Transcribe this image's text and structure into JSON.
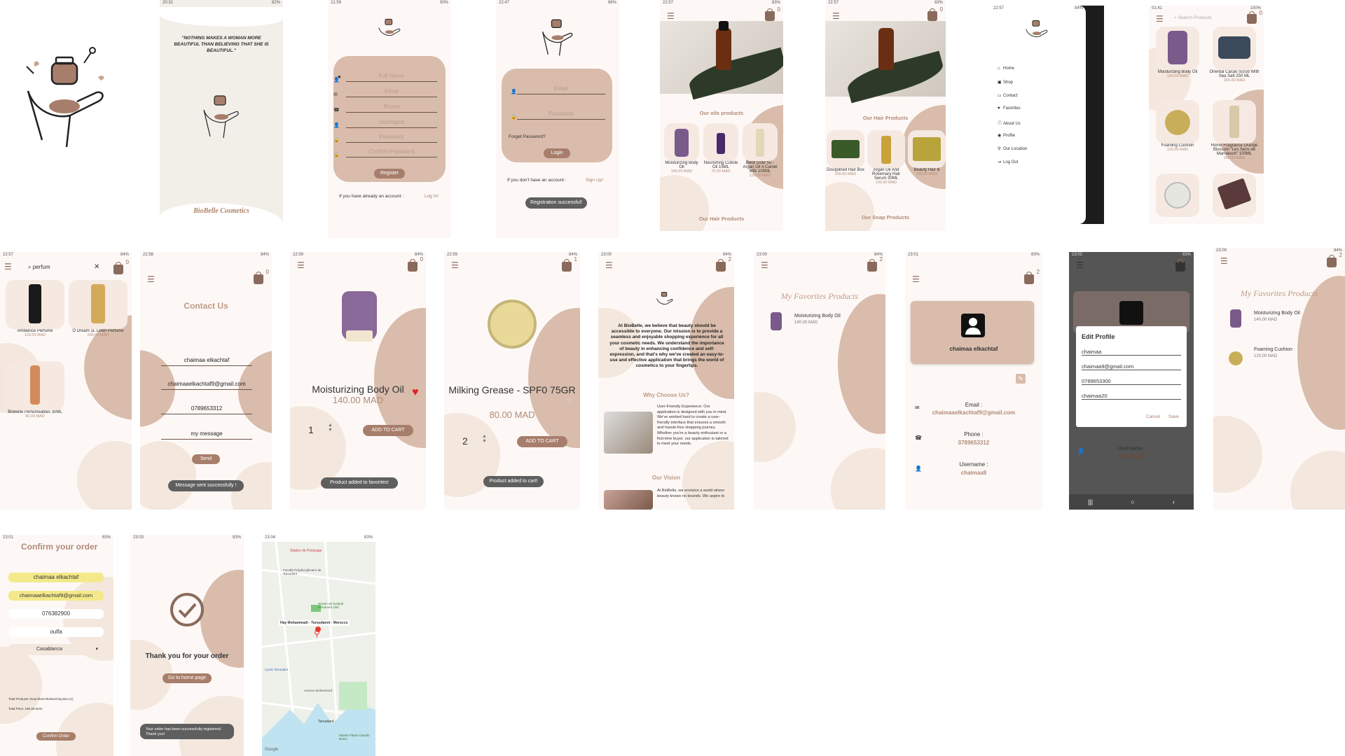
{
  "brand": {
    "name": "BioBelle Cosmetics",
    "quote": "\"NOTHING MAKES A WOMAN MORE BEAUTIFUL THAN BELIEVING THAT SHE IS BEAUTIFUL.\""
  },
  "colors": {
    "accent": "#a77e6b",
    "blob_dark": "#d9bcab",
    "blob_light": "#f4e7dd",
    "price": "#b18a78"
  },
  "status_times": [
    "20:31",
    "21:59",
    "22:47",
    "22:57",
    "22:57",
    "22:57",
    "01:41",
    "22:57",
    "22:58",
    "22:59",
    "22:59",
    "23:00",
    "23:00",
    "23:01",
    "23:02",
    "23:00",
    "23:01",
    "23:03",
    "23:04"
  ],
  "register": {
    "fields": [
      "Full Name",
      "Email",
      "Phone",
      "Username",
      "Password",
      "Confirm Password"
    ],
    "button": "Register",
    "footer_text": "If you have already an account :",
    "footer_link": "Log In!"
  },
  "login": {
    "fields": [
      "Email",
      "Password"
    ],
    "forgot": "Forget Password?",
    "button": "Login",
    "footer_text": "If you don't have an account :",
    "footer_link": "Sign Up!",
    "toast": "Registration successful!"
  },
  "home1": {
    "cart_count": "0",
    "section1": "Our oils products",
    "products": [
      {
        "name": "Moisturizing Body Oil",
        "price": "140.00 MAD"
      },
      {
        "name": "Nourishing Cuticle Oil 15ML",
        "price": "70.00 MAD"
      },
      {
        "name": "Beldi Gold So - Argan Oil A Camel Milk 100ML",
        "price": "120.00 MAD"
      }
    ],
    "section2": "Our Hair Products"
  },
  "home2": {
    "cart_count": "0",
    "section1": "Our Hair Products",
    "products": [
      {
        "name": "Disciplined Hair Box",
        "price": "330.00 MAD"
      },
      {
        "name": "Argan Oil And Rosemary Hair Serum 30ML",
        "price": "100.00 MAD"
      },
      {
        "name": "Beauty Hair B",
        "price": "230.00 MAD"
      }
    ],
    "section2": "Our Soap Products"
  },
  "drawer": {
    "items": [
      "Home",
      "Shop",
      "Contact",
      "Favorites",
      "About Us",
      "Profile",
      "Our Location",
      "Log Out"
    ]
  },
  "shop": {
    "search_placeholder": "Search Products",
    "cart_count": "0",
    "products": [
      {
        "name": "Moisturizing Body Oil",
        "price": "140.00 MAD"
      },
      {
        "name": "Oriental Cacao Scrub With Sea Salt 250 ML",
        "price": "265.00 MAD"
      },
      {
        "name": "Foaming Cushion",
        "price": "120.00 MAD"
      },
      {
        "name": "Home Fragrance Orange Blossom \"Les Sens de Marrakech\" 100ML",
        "price": "265.00 MAD"
      }
    ]
  },
  "search": {
    "query": "perfum",
    "cart_count": "0",
    "products": [
      {
        "name": "Ambiance Perfume",
        "price": "129.00 MAD"
      },
      {
        "name": "O Dream 1L Linen Perfume",
        "price": "290.00 MAD"
      },
      {
        "name": "BioBelle Perfumeables 30ML",
        "price": "90.00 MAD"
      }
    ]
  },
  "contact": {
    "title": "Contact Us",
    "cart_count": "0",
    "name": "chaimaa elkachtaf",
    "email": "chaimaaelkachtaf9@gmail.com",
    "phone": "0789653312",
    "message": "my message",
    "button": "Send",
    "toast": "Message sent successfully !"
  },
  "detail1": {
    "cart_count": "0",
    "name": "Moisturizing Body Oil",
    "price": "140.00 MAD",
    "qty": "1",
    "button": "ADD TO CART",
    "toast": "Product added to favorites!"
  },
  "detail2": {
    "cart_count": "1",
    "name": "Milking Grease - SPF0 75GR",
    "price": "80.00 MAD",
    "qty": "2",
    "button": "ADD TO CART",
    "toast": "Product added to cart!"
  },
  "about": {
    "cart_count": "2",
    "intro": "At BioBelle, we believe that beauty should be accessible to everyone. Our mission is to provide a seamless and enjoyable shopping experience for all your cosmetic needs. We understand the importance of beauty in enhancing confidence and self-expression, and that's why we've created an easy-to-use and effective application that brings the world of cosmetics to your fingertips.",
    "why_title": "Why Choose Us?",
    "why_text": "User-Friendly Experience: Our application is designed with you in mind. We've worked hard to create a user-friendly interface that ensures a smooth and hassle-free shopping journey. Whether you're a beauty enthusiast or a first-time buyer, our application is tailored to meet your needs.",
    "vision_title": "Our Vision",
    "vision_text": "At BioBelle, we envision a world where beauty knows no bounds. We aspire to"
  },
  "fav1": {
    "cart_count": "2",
    "title": "My Favorites Products",
    "items": [
      {
        "name": "Moisturizing Body Oil",
        "price": "140.00 MAD"
      }
    ]
  },
  "profile": {
    "cart_count": "2",
    "name": "chaimaa elkachtaf",
    "email_label": "Email :",
    "email": "chaimaaelkachtaf9@gmail.com",
    "phone_label": "Phone :",
    "phone": "0789653312",
    "username_label": "Username :",
    "username": "chaimaa9"
  },
  "edit": {
    "title": "Edit Profile",
    "name": "chaimaa",
    "email": "chaimaa9@gmail.com",
    "phone": "0789653300",
    "username": "chaimaa20",
    "cancel": "Cancel",
    "save": "Save",
    "username_label": "Username :",
    "username_value": "chaimaa9"
  },
  "fav2": {
    "cart_count": "2",
    "title": "My Favorites Products",
    "items": [
      {
        "name": "Moisturizing Body Oil",
        "price": "140.00 MAD"
      },
      {
        "name": "Foaming Cushion",
        "price": "120.00 MAD"
      }
    ]
  },
  "confirm": {
    "title": "Confirm your order",
    "name": "chaimaa elkachtaf",
    "email": "chaimaaelkachtaf9@gmail.com",
    "phone": "076382900",
    "address": "oulfa",
    "city": "Casablanca",
    "summary1": "Total Products: Nourished Moisturizing Box (1)",
    "summary2": "Total Price: 190.00 MAD",
    "button": "Confirm Order"
  },
  "thanks": {
    "title": "Thank you for your order",
    "button": "Go to home page",
    "toast": "Your order has been successfully registered. Thank you!"
  },
  "map": {
    "labels": [
      "Station de Pompage",
      "Faculté Polydisciplinaire de Taroudant",
      "Terrain de football Mohamed Jdid",
      "Hay Mohammadi - Taroudannt - Morocco",
      "Lycée Taroudant",
      "Avenue Mohammed",
      "Taroudant",
      "Musée Palais Claudio Bravo",
      "Google"
    ]
  }
}
